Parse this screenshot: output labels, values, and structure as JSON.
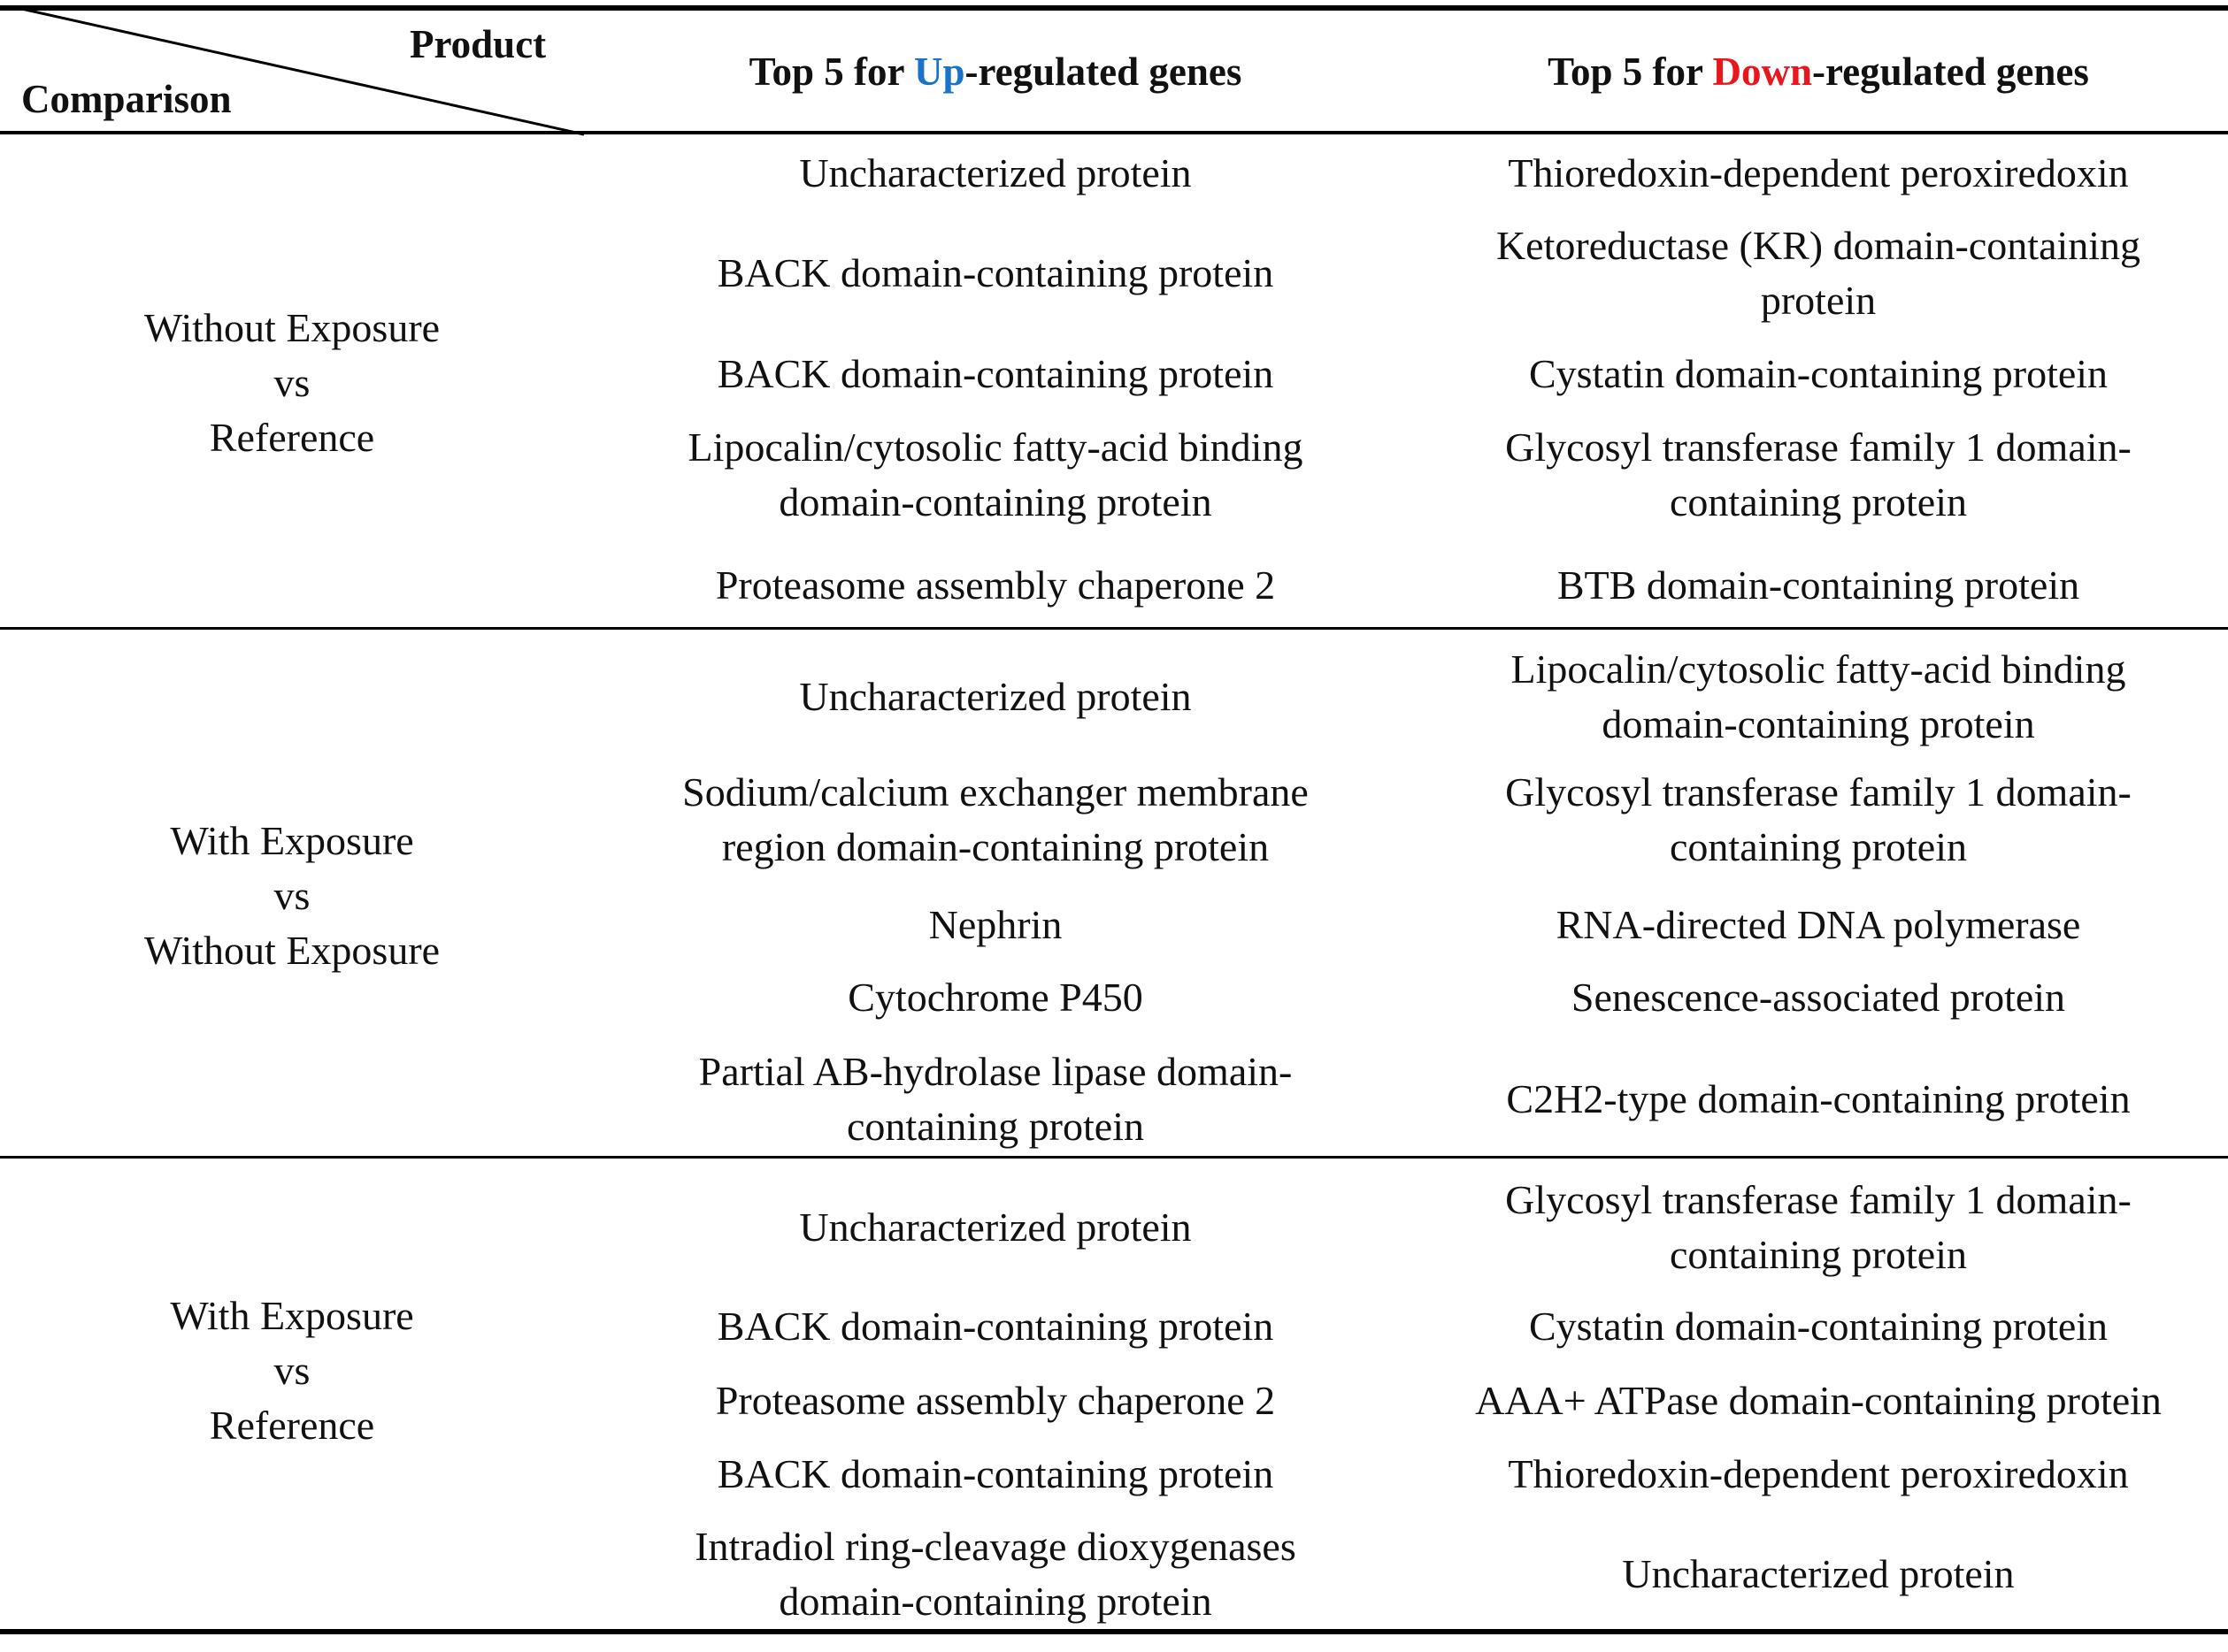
{
  "header": {
    "product": "Product",
    "comparison": "Comparison",
    "up": {
      "prefix": "Top 5 for ",
      "highlight": "Up",
      "suffix": "-regulated genes"
    },
    "down": {
      "prefix": "Top 5 for ",
      "highlight": "Down",
      "suffix": "-regulated genes"
    }
  },
  "colors": {
    "up_highlight": "#1a73c9",
    "down_highlight": "#e8161d"
  },
  "groups": [
    {
      "comparison": [
        "Without Exposure",
        "vs",
        "Reference"
      ],
      "up": [
        [
          "Uncharacterized protein"
        ],
        [
          "BACK domain-containing protein"
        ],
        [
          "BACK domain-containing protein"
        ],
        [
          "Lipocalin/cytosolic fatty-acid binding",
          "domain-containing protein"
        ],
        [
          "Proteasome assembly chaperone 2"
        ]
      ],
      "down": [
        [
          "Thioredoxin-dependent peroxiredoxin"
        ],
        [
          "Ketoreductase (KR) domain-containing",
          "protein"
        ],
        [
          "Cystatin domain-containing protein"
        ],
        [
          "Glycosyl transferase family 1 domain-",
          "containing protein"
        ],
        [
          "BTB domain-containing protein"
        ]
      ]
    },
    {
      "comparison": [
        "With Exposure",
        "vs",
        "Without Exposure"
      ],
      "up": [
        [
          "Uncharacterized protein"
        ],
        [
          "Sodium/calcium exchanger membrane",
          "region domain-containing protein"
        ],
        [
          "Nephrin"
        ],
        [
          "Cytochrome P450"
        ],
        [
          "Partial AB-hydrolase lipase domain-",
          "containing protein"
        ]
      ],
      "down": [
        [
          "Lipocalin/cytosolic fatty-acid binding",
          "domain-containing protein"
        ],
        [
          "Glycosyl transferase family 1 domain-",
          "containing protein"
        ],
        [
          "RNA-directed DNA polymerase"
        ],
        [
          "Senescence-associated protein"
        ],
        [
          "C2H2-type domain-containing protein"
        ]
      ]
    },
    {
      "comparison": [
        "With Exposure",
        "vs",
        "Reference"
      ],
      "up": [
        [
          "Uncharacterized protein"
        ],
        [
          "BACK domain-containing protein"
        ],
        [
          "Proteasome assembly chaperone 2"
        ],
        [
          "BACK domain-containing protein"
        ],
        [
          "Intradiol ring-cleavage dioxygenases",
          "domain-containing protein"
        ]
      ],
      "down": [
        [
          "Glycosyl transferase family 1 domain-",
          "containing protein"
        ],
        [
          "Cystatin domain-containing protein"
        ],
        [
          "AAA+ ATPase domain-containing protein"
        ],
        [
          "Thioredoxin-dependent peroxiredoxin"
        ],
        [
          "Uncharacterized protein"
        ]
      ]
    }
  ]
}
